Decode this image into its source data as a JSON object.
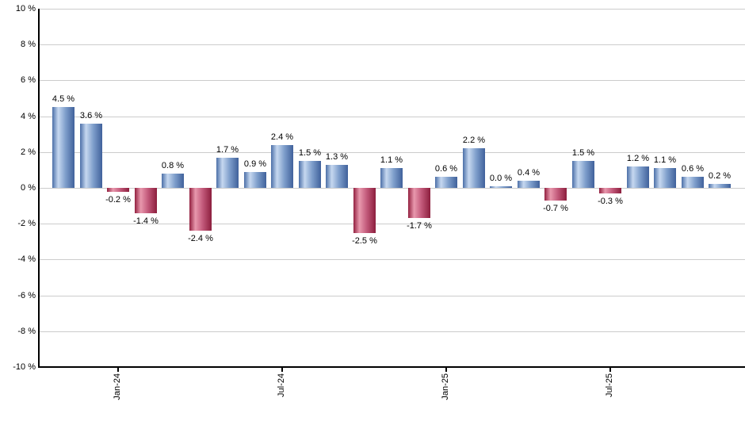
{
  "chart_data": {
    "type": "bar",
    "title": "",
    "unit": "%",
    "values": [
      4.5,
      3.6,
      -0.2,
      -1.4,
      0.8,
      -2.4,
      1.7,
      0.9,
      2.4,
      1.5,
      1.3,
      -2.5,
      1.1,
      -1.7,
      0.6,
      2.2,
      0.0,
      0.4,
      -0.7,
      1.5,
      -0.3,
      1.2,
      1.1,
      0.6,
      0.2
    ],
    "bar_labels": [
      "4.5 %",
      "3.6 %",
      "-0.2 %",
      "-1.4 %",
      "0.8 %",
      "-2.4 %",
      "1.7 %",
      "0.9 %",
      "2.4 %",
      "1.5 %",
      "1.3 %",
      "-2.5 %",
      "1.1 %",
      "-1.7 %",
      "0.6 %",
      "2.2 %",
      "0.0 %",
      "0.4 %",
      "-0.7 %",
      "1.5 %",
      "-0.3 %",
      "1.2 %",
      "1.1 %",
      "0.6 %",
      "0.2 %"
    ],
    "x_ticks": [
      {
        "label": "Jan-24",
        "bar_index": 2
      },
      {
        "label": "Jul-24",
        "bar_index": 8
      },
      {
        "label": "Jan-25",
        "bar_index": 14
      },
      {
        "label": "Jul-25",
        "bar_index": 20
      }
    ],
    "y_ticks": [
      {
        "value": 10,
        "label": "10 %"
      },
      {
        "value": 8,
        "label": "8 %"
      },
      {
        "value": 6,
        "label": "6 %"
      },
      {
        "value": 4,
        "label": "4 %"
      },
      {
        "value": 2,
        "label": "2 %"
      },
      {
        "value": 0,
        "label": "0 %"
      },
      {
        "value": -2,
        "label": "-2 %"
      },
      {
        "value": -4,
        "label": "-4 %"
      },
      {
        "value": -6,
        "label": "-6 %"
      },
      {
        "value": -8,
        "label": "-8 %"
      },
      {
        "value": -10,
        "label": "-10 %"
      }
    ],
    "ylim": [
      -10,
      10
    ],
    "grid": true,
    "legend": null,
    "colors": {
      "positive_gradient": [
        "#4c6fa8",
        "#c6d8f0",
        "#7e9ecb",
        "#40619b"
      ],
      "negative_gradient": [
        "#932040",
        "#e898ad",
        "#c2597a",
        "#8c1e3d"
      ],
      "gridline": "#cccccc",
      "axis": "#000000",
      "label_text": "#000000",
      "background": "#ffffff"
    }
  }
}
